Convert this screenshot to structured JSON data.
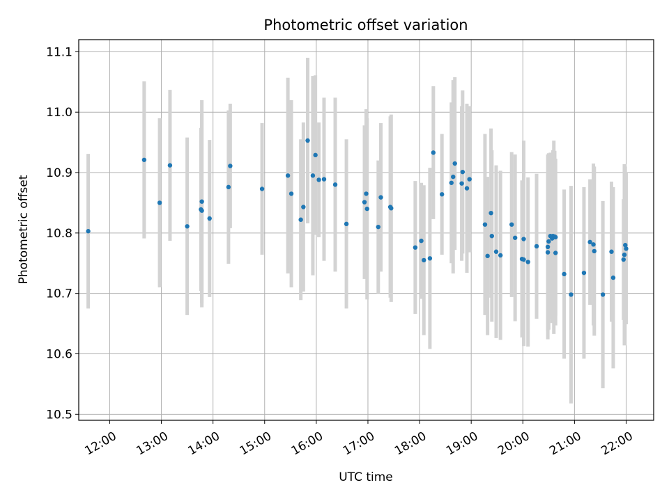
{
  "chart_data": {
    "type": "scatter",
    "title": "Photometric offset variation",
    "xlabel": "UTC time",
    "ylabel": "Photometric offset",
    "x_tick_labels": [
      "12:00",
      "13:00",
      "14:00",
      "15:00",
      "16:00",
      "17:00",
      "18:00",
      "19:00",
      "20:00",
      "21:00",
      "22:00"
    ],
    "y_tick_labels": [
      "10.5",
      "10.6",
      "10.7",
      "10.8",
      "10.9",
      "11.0",
      "11.1"
    ],
    "x_ticks": [
      "12:00",
      "13:00",
      "14:00",
      "15:00",
      "16:00",
      "17:00",
      "18:00",
      "19:00",
      "20:00",
      "21:00",
      "22:00"
    ],
    "y_ticks": [
      10.5,
      10.6,
      10.7,
      10.8,
      10.9,
      11.0,
      11.1
    ],
    "xlim": [
      "11:24",
      "22:32"
    ],
    "ylim": [
      10.49,
      11.12
    ],
    "grid": true,
    "colors": {
      "point": "#1f77b4",
      "errorbar": "#d3d3d3",
      "grid": "#b0b0b0"
    },
    "series": [
      {
        "x": [
          "11:35",
          "12:40",
          "12:58",
          "13:10",
          "13:30",
          "13:46",
          "13:47",
          "13:47",
          "13:56",
          "14:18",
          "14:20",
          "14:57",
          "15:27",
          "15:31",
          "15:42",
          "15:45",
          "15:50",
          "15:56",
          "15:59",
          "16:03",
          "16:09",
          "16:22",
          "16:35",
          "16:56",
          "16:58",
          "16:59",
          "17:12",
          "17:15",
          "17:26",
          "17:27",
          "17:55",
          "18:02",
          "18:05",
          "18:12",
          "18:16",
          "18:26",
          "18:37",
          "18:39",
          "18:41",
          "18:49",
          "18:50",
          "18:55",
          "18:58",
          "19:16",
          "19:19",
          "19:23",
          "19:24",
          "19:29",
          "19:34",
          "19:47",
          "19:51",
          "19:59",
          "20:01",
          "20:01",
          "20:06",
          "20:16",
          "20:29",
          "20:29",
          "20:30",
          "20:32",
          "20:34",
          "20:35",
          "20:36",
          "20:37",
          "20:38",
          "20:38",
          "20:48",
          "20:56",
          "21:11",
          "21:18",
          "21:22",
          "21:23",
          "21:33",
          "21:43",
          "21:45",
          "21:57",
          "21:58",
          "21:59",
          "22:00"
        ],
        "y": [
          10.803,
          10.921,
          10.85,
          10.912,
          10.811,
          10.839,
          10.852,
          10.837,
          10.824,
          10.876,
          10.911,
          10.873,
          10.895,
          10.865,
          10.822,
          10.843,
          10.953,
          10.895,
          10.929,
          10.888,
          10.889,
          10.88,
          10.815,
          10.851,
          10.865,
          10.84,
          10.81,
          10.859,
          10.843,
          10.841,
          10.776,
          10.787,
          10.755,
          10.758,
          10.933,
          10.864,
          10.883,
          10.893,
          10.915,
          10.882,
          10.901,
          10.874,
          10.889,
          10.814,
          10.762,
          10.833,
          10.795,
          10.769,
          10.763,
          10.814,
          10.792,
          10.757,
          10.79,
          10.756,
          10.752,
          10.778,
          10.768,
          10.777,
          10.786,
          10.795,
          10.791,
          10.795,
          10.793,
          10.794,
          10.767,
          10.793,
          10.732,
          10.698,
          10.734,
          10.785,
          10.781,
          10.77,
          10.698,
          10.769,
          10.726,
          10.756,
          10.764,
          10.78,
          10.774
        ],
        "yerr": [
          0.128,
          0.13,
          0.14,
          0.125,
          0.147,
          0.135,
          0.168,
          0.16,
          0.13,
          0.127,
          0.103,
          0.109,
          0.162,
          0.155,
          0.133,
          0.14,
          0.137,
          0.165,
          0.132,
          0.095,
          0.135,
          0.144,
          0.14,
          0.127,
          0.14,
          0.15,
          0.11,
          0.123,
          0.15,
          0.155,
          0.11,
          0.096,
          0.124,
          0.15,
          0.11,
          0.1,
          0.133,
          0.16,
          0.143,
          0.128,
          0.135,
          0.14,
          0.121,
          0.15,
          0.131,
          0.14,
          0.142,
          0.143,
          0.14,
          0.12,
          0.138,
          0.13,
          0.163,
          0.143,
          0.14,
          0.12,
          0.13,
          0.153,
          0.146,
          0.138,
          0.14,
          0.142,
          0.16,
          0.142,
          0.12,
          0.13,
          0.14,
          0.18,
          0.142,
          0.104,
          0.134,
          0.14,
          0.155,
          0.116,
          0.15,
          0.1,
          0.15,
          0.13,
          0.125
        ]
      }
    ]
  }
}
